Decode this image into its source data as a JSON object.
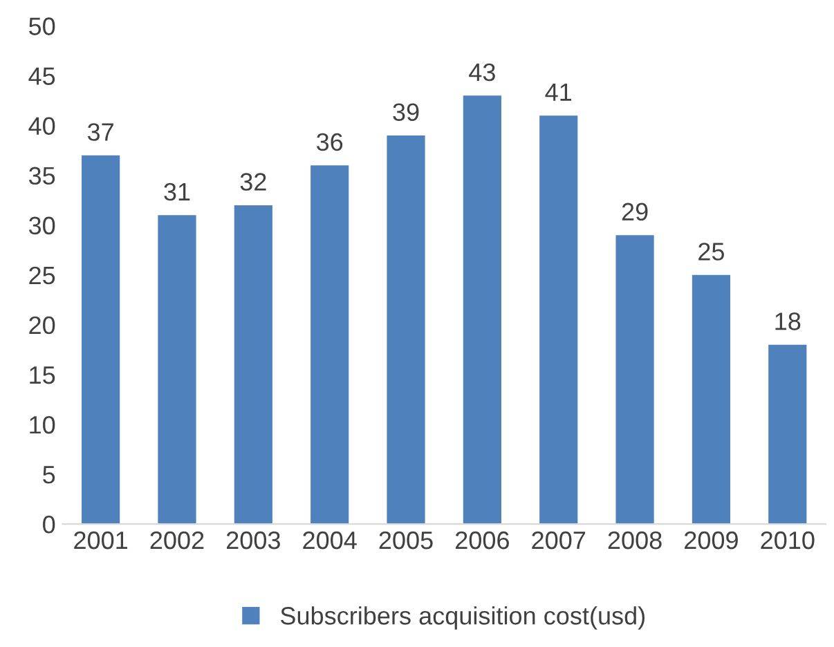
{
  "chart_data": {
    "type": "bar",
    "categories": [
      "2001",
      "2002",
      "2003",
      "2004",
      "2005",
      "2006",
      "2007",
      "2008",
      "2009",
      "2010"
    ],
    "series": [
      {
        "name": "Subscribers acquisition cost(usd)",
        "color": "#4f81bd",
        "values": [
          37,
          31,
          32,
          36,
          39,
          43,
          41,
          29,
          25,
          18
        ]
      }
    ],
    "ylim": [
      0,
      50
    ],
    "yticks": [
      0,
      5,
      10,
      15,
      20,
      25,
      30,
      35,
      40,
      45,
      50
    ],
    "data_labels": true,
    "grid": false,
    "legend": "bottom"
  }
}
